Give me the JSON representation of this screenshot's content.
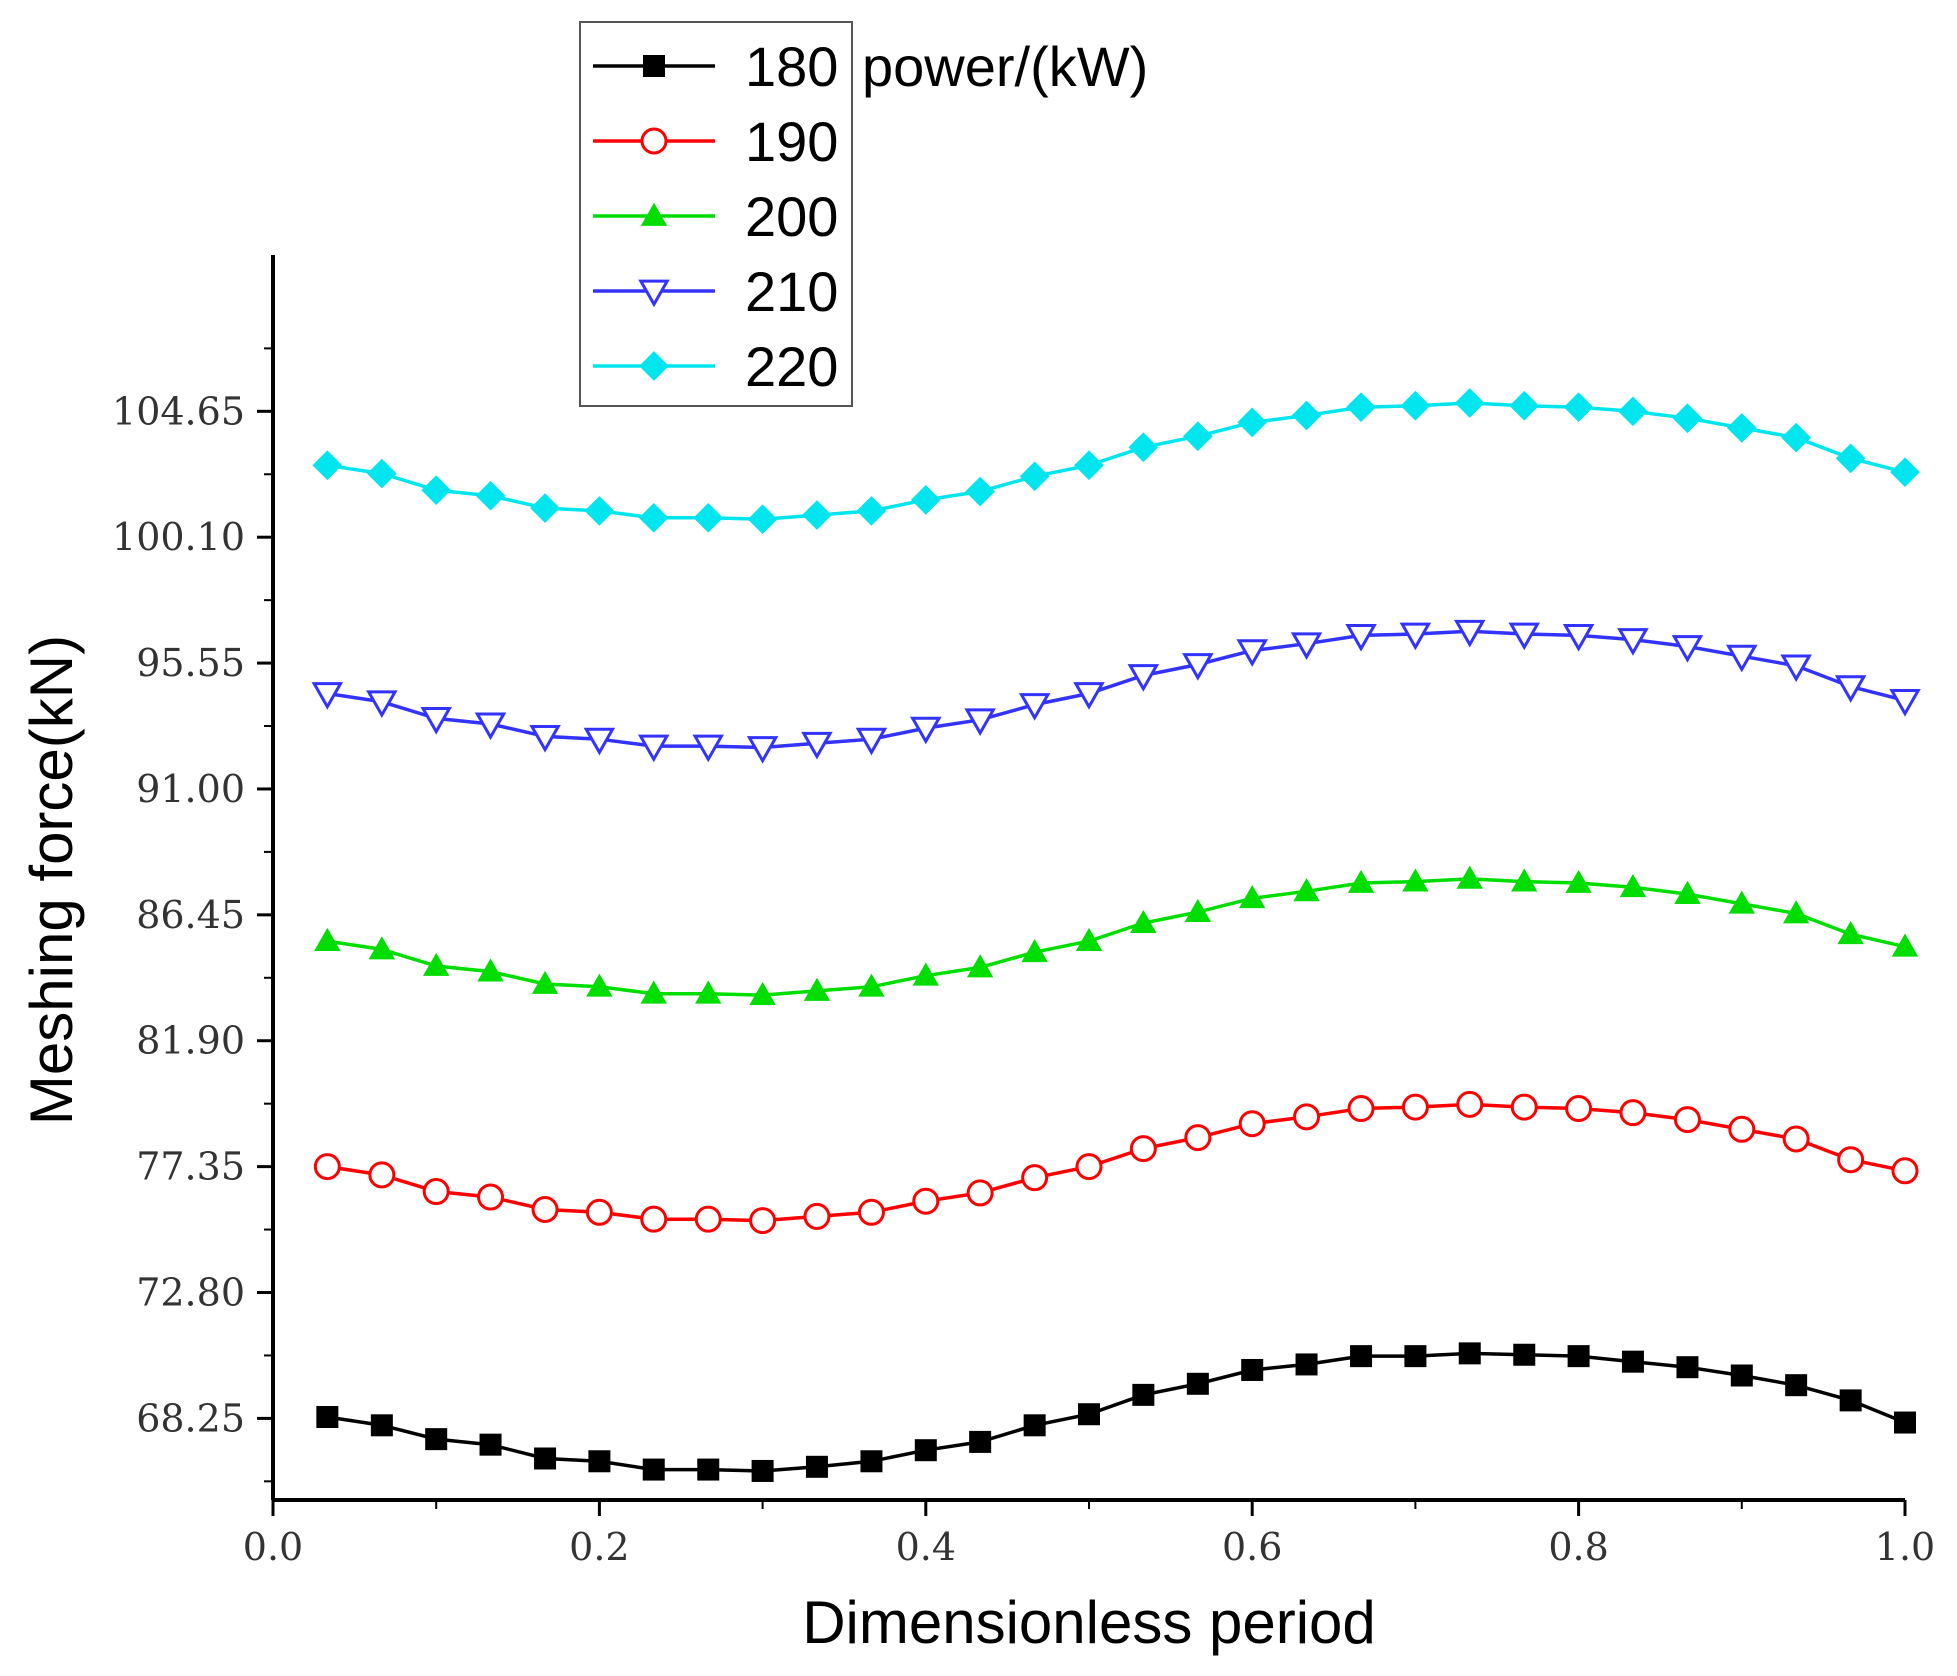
{
  "chart_data": {
    "type": "line",
    "xlabel": "Dimensionless period",
    "ylabel": "Meshing force(kN)",
    "xlim": [
      0.0,
      1.0
    ],
    "ylim": [
      65.3,
      110.3
    ],
    "x_ticks": [
      0.0,
      0.2,
      0.4,
      0.6,
      0.8,
      1.0
    ],
    "x_tick_labels": [
      "0.0",
      "0.2",
      "0.4",
      "0.6",
      "0.8",
      "1.0"
    ],
    "y_ticks": [
      68.25,
      72.8,
      77.35,
      81.9,
      86.45,
      91.0,
      95.55,
      100.1,
      104.65
    ],
    "y_tick_labels": [
      "68.25",
      "72.80",
      "77.35",
      "81.90",
      "86.45",
      "91.00",
      "95.55",
      "100.10",
      "104.65"
    ],
    "legend": {
      "title": "power/(kW)",
      "placement": "top-left"
    },
    "x": [
      0.0333,
      0.0667,
      0.1,
      0.1333,
      0.1667,
      0.2,
      0.2333,
      0.2667,
      0.3,
      0.3333,
      0.3667,
      0.4,
      0.4333,
      0.4667,
      0.5,
      0.5333,
      0.5667,
      0.6,
      0.6333,
      0.6667,
      0.7,
      0.7333,
      0.7667,
      0.8,
      0.8333,
      0.8667,
      0.9,
      0.9333,
      0.9667,
      1.0
    ],
    "series": [
      {
        "name": "180",
        "color": "#000000",
        "marker": "square-filled",
        "values": [
          68.3,
          68.0,
          67.5,
          67.3,
          66.8,
          66.7,
          66.4,
          66.4,
          66.35,
          66.5,
          66.7,
          67.1,
          67.4,
          68.0,
          68.4,
          69.1,
          69.5,
          70.0,
          70.2,
          70.5,
          70.5,
          70.6,
          70.55,
          70.5,
          70.3,
          70.1,
          69.8,
          69.45,
          68.9,
          68.1
        ]
      },
      {
        "name": "190",
        "color": "#ff0000",
        "marker": "circle-open",
        "values": [
          77.35,
          77.05,
          76.45,
          76.25,
          75.8,
          75.7,
          75.45,
          75.45,
          75.4,
          75.55,
          75.7,
          76.1,
          76.4,
          76.95,
          77.35,
          78.0,
          78.4,
          78.9,
          79.15,
          79.45,
          79.5,
          79.6,
          79.5,
          79.45,
          79.3,
          79.05,
          78.7,
          78.35,
          77.6,
          77.2
        ]
      },
      {
        "name": "200",
        "color": "#00dd00",
        "marker": "triangle-up-filled",
        "values": [
          85.5,
          85.2,
          84.6,
          84.4,
          83.95,
          83.85,
          83.6,
          83.6,
          83.55,
          83.7,
          83.85,
          84.25,
          84.55,
          85.1,
          85.5,
          86.15,
          86.55,
          87.05,
          87.3,
          87.6,
          87.65,
          87.75,
          87.65,
          87.6,
          87.45,
          87.2,
          86.85,
          86.5,
          85.75,
          85.3
        ]
      },
      {
        "name": "210",
        "color": "#3333ff",
        "marker": "triangle-down-open",
        "values": [
          94.45,
          94.15,
          93.55,
          93.35,
          92.9,
          92.8,
          92.55,
          92.55,
          92.5,
          92.65,
          92.8,
          93.2,
          93.5,
          94.05,
          94.45,
          95.1,
          95.5,
          96.0,
          96.25,
          96.55,
          96.6,
          96.7,
          96.6,
          96.55,
          96.4,
          96.15,
          95.8,
          95.45,
          94.7,
          94.2
        ]
      },
      {
        "name": "220",
        "color": "#00e5ee",
        "marker": "diamond-filled",
        "values": [
          102.7,
          102.4,
          101.8,
          101.6,
          101.15,
          101.05,
          100.8,
          100.8,
          100.75,
          100.9,
          101.05,
          101.45,
          101.75,
          102.3,
          102.7,
          103.35,
          103.75,
          104.25,
          104.5,
          104.8,
          104.85,
          104.95,
          104.85,
          104.8,
          104.65,
          104.4,
          104.05,
          103.7,
          102.95,
          102.45
        ]
      }
    ]
  }
}
